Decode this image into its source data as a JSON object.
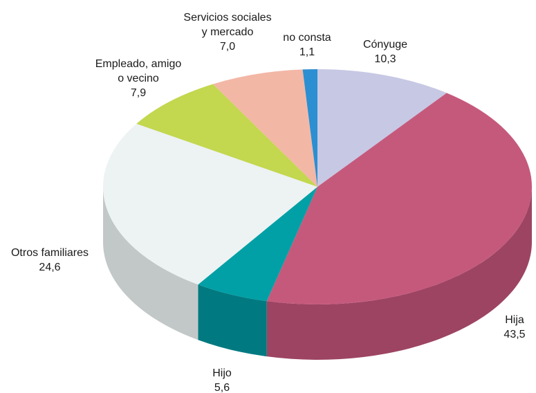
{
  "chart_data": {
    "type": "pie",
    "three_d": true,
    "title": "",
    "start_angle_deg": 0,
    "direction": "clockwise",
    "slices": [
      {
        "label": [
          "Cónyuge"
        ],
        "value_label": "10,3",
        "value": 10.3,
        "color": "#c7c8e4",
        "side_color": "#a8a9c8"
      },
      {
        "label": [
          "Hija"
        ],
        "value_label": "43,5",
        "value": 43.5,
        "color": "#c5597c",
        "side_color": "#9d4462"
      },
      {
        "label": [
          "Hijo"
        ],
        "value_label": "5,6",
        "value": 5.6,
        "color": "#00a0a6",
        "side_color": "#007a80"
      },
      {
        "label": [
          "Otros familiares"
        ],
        "value_label": "24,6",
        "value": 24.6,
        "color": "#edf2f3",
        "side_color": "#c2c8c8"
      },
      {
        "label": [
          "Empleado, amigo",
          "o vecino"
        ],
        "value_label": "7,9",
        "value": 7.9,
        "color": "#c3d74f",
        "side_color": "#9aaa3c"
      },
      {
        "label": [
          "Servicios sociales",
          "y mercado"
        ],
        "value_label": "7,0",
        "value": 7.0,
        "color": "#f3b7a6",
        "side_color": "#c99585"
      },
      {
        "label": [
          "no consta"
        ],
        "value_label": "1,1",
        "value": 1.1,
        "color": "#2c8fd1",
        "side_color": "#1f6ea3"
      }
    ]
  }
}
